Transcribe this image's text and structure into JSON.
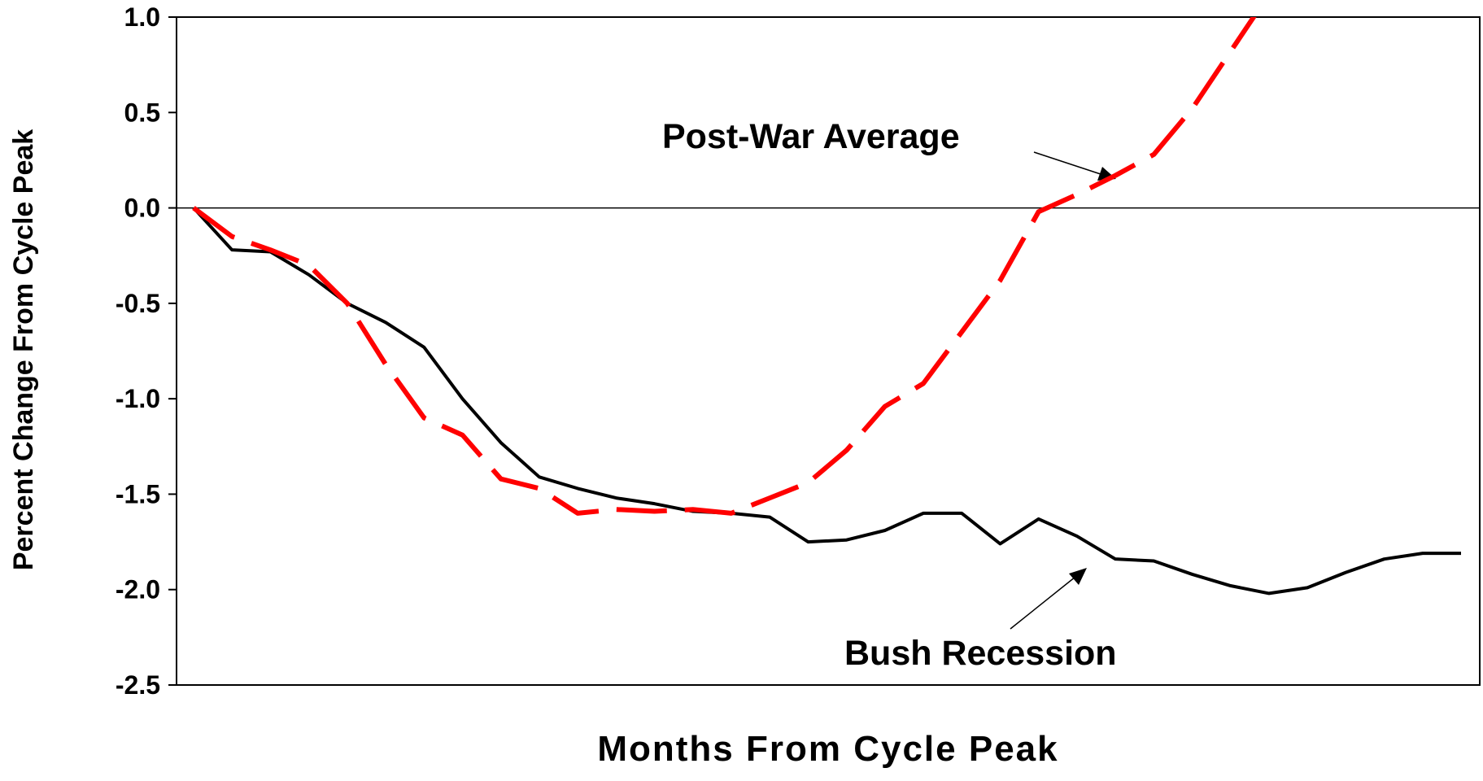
{
  "chart_data": {
    "type": "line",
    "x_label": "Months From Cycle Peak",
    "y_label": "Percent Change From Cycle Peak",
    "x": [
      0,
      1,
      2,
      3,
      4,
      5,
      6,
      7,
      8,
      9,
      10,
      11,
      12,
      13,
      14,
      15,
      16,
      17,
      18,
      19,
      20,
      21,
      22,
      23,
      24,
      25,
      26,
      27,
      28,
      29,
      30,
      31,
      32,
      33
    ],
    "xlim": [
      0,
      33
    ],
    "ylim": [
      -2.5,
      1.0
    ],
    "yticks": [
      {
        "value": 1.0,
        "label": "1.0"
      },
      0.5,
      {
        "value": 0.0,
        "label": "0.0"
      },
      -0.5,
      {
        "value": -1.0,
        "label": "-1.0"
      },
      -1.5,
      {
        "value": -2.0,
        "label": "-2.0"
      },
      -2.5
    ],
    "zero_line": true,
    "series": [
      {
        "name": "Post-War Average",
        "color": "#ff0000",
        "dashed": true,
        "values": [
          0,
          -0.15,
          -0.22,
          -0.3,
          -0.5,
          -0.82,
          -1.1,
          -1.19,
          -1.42,
          -1.47,
          -1.6,
          -1.58,
          -1.59,
          -1.58,
          -1.6,
          -1.52,
          -1.44,
          -1.27,
          -1.04,
          -0.92,
          -0.65,
          -0.38,
          -0.02,
          0.07,
          0.17,
          0.28,
          0.52,
          0.82,
          1.12,
          null,
          null,
          null,
          null,
          null
        ]
      },
      {
        "name": "Bush Recession",
        "color": "#000000",
        "dashed": false,
        "values": [
          0,
          -0.22,
          -0.23,
          -0.35,
          -0.5,
          -0.6,
          -0.73,
          -1.0,
          -1.23,
          -1.41,
          -1.47,
          -1.52,
          -1.55,
          -1.59,
          -1.6,
          -1.62,
          -1.75,
          -1.74,
          -1.69,
          -1.6,
          -1.6,
          -1.76,
          -1.63,
          -1.72,
          -1.84,
          -1.85,
          -1.92,
          -1.98,
          -2.02,
          -1.99,
          -1.91,
          -1.84,
          -1.81,
          -1.81
        ]
      }
    ]
  }
}
